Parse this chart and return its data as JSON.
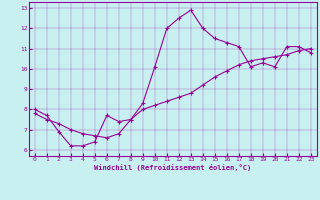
{
  "xlabel": "Windchill (Refroidissement éolien,°C)",
  "bg_color": "#c8f0f0",
  "line_color": "#990099",
  "xlim": [
    -0.5,
    23.5
  ],
  "ylim": [
    5.7,
    13.3
  ],
  "xticks": [
    0,
    1,
    2,
    3,
    4,
    5,
    6,
    7,
    8,
    9,
    10,
    11,
    12,
    13,
    14,
    15,
    16,
    17,
    18,
    19,
    20,
    21,
    22,
    23
  ],
  "yticks": [
    6,
    7,
    8,
    9,
    10,
    11,
    12,
    13
  ],
  "line1_x": [
    0,
    1,
    2,
    3,
    4,
    5,
    6,
    7,
    8,
    9,
    10,
    11,
    12,
    13,
    14,
    15,
    16,
    17,
    18,
    19,
    20,
    21,
    22,
    23
  ],
  "line1_y": [
    8.0,
    7.7,
    6.9,
    6.2,
    6.2,
    6.4,
    7.7,
    7.4,
    7.5,
    8.3,
    10.1,
    12.0,
    12.5,
    12.9,
    12.0,
    11.5,
    11.3,
    11.1,
    10.1,
    10.3,
    10.1,
    11.1,
    11.1,
    10.8
  ],
  "line2_x": [
    0,
    1,
    2,
    3,
    4,
    5,
    6,
    7,
    8,
    9,
    10,
    11,
    12,
    13,
    14,
    15,
    16,
    17,
    18,
    19,
    20,
    21,
    22,
    23
  ],
  "line2_y": [
    7.8,
    7.5,
    7.3,
    7.0,
    6.8,
    6.7,
    6.6,
    6.8,
    7.5,
    8.0,
    8.2,
    8.4,
    8.6,
    8.8,
    9.2,
    9.6,
    9.9,
    10.2,
    10.4,
    10.5,
    10.6,
    10.7,
    10.9,
    11.0
  ]
}
